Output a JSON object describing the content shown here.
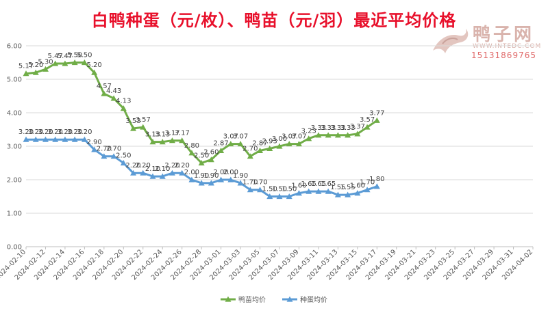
{
  "title": "白鸭种蛋（元/枚）、鸭苗（元/羽）最近平均价格",
  "watermark": {
    "name": "鸭子网",
    "url": "WWW.INTEDC.COM",
    "phone": "15131869765"
  },
  "colors": {
    "duckling": "#70ad47",
    "egg": "#5b9bd5",
    "title": "#e8102b",
    "grid": "#d9d9d9"
  },
  "chart_data": {
    "type": "line",
    "title": "白鸭种蛋（元/枚）、鸭苗（元/羽）最近平均价格",
    "ylim": [
      0,
      6
    ],
    "yticks": [
      "0.00",
      "1.00",
      "2.00",
      "3.00",
      "4.00",
      "5.00",
      "6.00"
    ],
    "x_start": "2024-02-10",
    "x_end": "2024-04-02",
    "xticks": [
      "2024-02-10",
      "2024-02-12",
      "2024-02-14",
      "2024-02-16",
      "2024-02-18",
      "2024-02-20",
      "2024-02-22",
      "2024-02-24",
      "2024-02-26",
      "2024-02-28",
      "2024-03-01",
      "2024-03-03",
      "2024-03-05",
      "2024-03-07",
      "2024-03-09",
      "2024-03-11",
      "2024-03-13",
      "2024-03-15",
      "2024-03-17",
      "2024-03-19",
      "2024-03-21",
      "2024-03-23",
      "2024-03-25",
      "2024-03-27",
      "2024-03-29",
      "2024-03-31",
      "2024-04-02"
    ],
    "x": [
      "2024-02-10",
      "2024-02-11",
      "2024-02-12",
      "2024-02-13",
      "2024-02-14",
      "2024-02-15",
      "2024-02-16",
      "2024-02-17",
      "2024-02-18",
      "2024-02-19",
      "2024-02-20",
      "2024-02-21",
      "2024-02-22",
      "2024-02-23",
      "2024-02-24",
      "2024-02-25",
      "2024-02-26",
      "2024-02-27",
      "2024-02-28",
      "2024-02-29",
      "2024-03-01",
      "2024-03-02",
      "2024-03-03",
      "2024-03-04",
      "2024-03-05",
      "2024-03-06",
      "2024-03-07",
      "2024-03-08",
      "2024-03-09",
      "2024-03-10",
      "2024-03-11",
      "2024-03-12",
      "2024-03-13",
      "2024-03-14",
      "2024-03-15",
      "2024-03-16",
      "2024-03-17"
    ],
    "legend_position": "bottom",
    "series": [
      {
        "name": "鸭苗均价",
        "color": "#70ad47",
        "marker": "triangle",
        "values": [
          5.17,
          5.2,
          5.3,
          5.47,
          5.47,
          5.5,
          5.5,
          5.2,
          4.57,
          4.43,
          4.13,
          3.53,
          3.57,
          3.13,
          3.13,
          3.17,
          3.17,
          2.8,
          2.5,
          2.6,
          2.87,
          3.07,
          3.07,
          2.7,
          2.87,
          2.93,
          3.0,
          3.07,
          3.07,
          3.23,
          3.33,
          3.33,
          3.33,
          3.33,
          3.37,
          3.57,
          3.77
        ]
      },
      {
        "name": "种蛋均价",
        "color": "#5b9bd5",
        "marker": "triangle",
        "values": [
          3.2,
          3.2,
          3.2,
          3.2,
          3.2,
          3.2,
          3.2,
          2.9,
          2.7,
          2.7,
          2.5,
          2.2,
          2.2,
          2.1,
          2.1,
          2.2,
          2.2,
          2.0,
          1.9,
          1.9,
          2.0,
          2.0,
          1.9,
          1.7,
          1.7,
          1.5,
          1.5,
          1.5,
          1.6,
          1.65,
          1.65,
          1.65,
          1.55,
          1.55,
          1.6,
          1.7,
          1.8
        ]
      }
    ]
  }
}
